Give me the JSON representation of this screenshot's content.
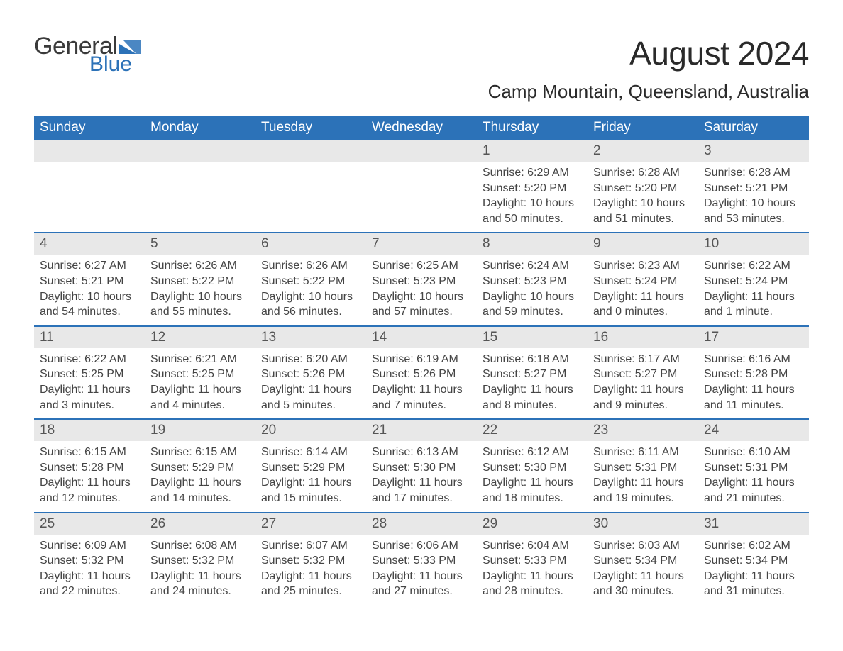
{
  "logo": {
    "text1": "General",
    "text2": "Blue"
  },
  "title": "August 2024",
  "location": "Camp Mountain, Queensland, Australia",
  "colors": {
    "header_bg": "#2c72b8",
    "header_text": "#ffffff",
    "daynum_bg": "#e8e8e8",
    "body_text": "#444444",
    "border": "#2c72b8"
  },
  "day_names": [
    "Sunday",
    "Monday",
    "Tuesday",
    "Wednesday",
    "Thursday",
    "Friday",
    "Saturday"
  ],
  "weeks": [
    [
      null,
      null,
      null,
      null,
      {
        "n": "1",
        "sr": "Sunrise: 6:29 AM",
        "ss": "Sunset: 5:20 PM",
        "dl": "Daylight: 10 hours and 50 minutes."
      },
      {
        "n": "2",
        "sr": "Sunrise: 6:28 AM",
        "ss": "Sunset: 5:20 PM",
        "dl": "Daylight: 10 hours and 51 minutes."
      },
      {
        "n": "3",
        "sr": "Sunrise: 6:28 AM",
        "ss": "Sunset: 5:21 PM",
        "dl": "Daylight: 10 hours and 53 minutes."
      }
    ],
    [
      {
        "n": "4",
        "sr": "Sunrise: 6:27 AM",
        "ss": "Sunset: 5:21 PM",
        "dl": "Daylight: 10 hours and 54 minutes."
      },
      {
        "n": "5",
        "sr": "Sunrise: 6:26 AM",
        "ss": "Sunset: 5:22 PM",
        "dl": "Daylight: 10 hours and 55 minutes."
      },
      {
        "n": "6",
        "sr": "Sunrise: 6:26 AM",
        "ss": "Sunset: 5:22 PM",
        "dl": "Daylight: 10 hours and 56 minutes."
      },
      {
        "n": "7",
        "sr": "Sunrise: 6:25 AM",
        "ss": "Sunset: 5:23 PM",
        "dl": "Daylight: 10 hours and 57 minutes."
      },
      {
        "n": "8",
        "sr": "Sunrise: 6:24 AM",
        "ss": "Sunset: 5:23 PM",
        "dl": "Daylight: 10 hours and 59 minutes."
      },
      {
        "n": "9",
        "sr": "Sunrise: 6:23 AM",
        "ss": "Sunset: 5:24 PM",
        "dl": "Daylight: 11 hours and 0 minutes."
      },
      {
        "n": "10",
        "sr": "Sunrise: 6:22 AM",
        "ss": "Sunset: 5:24 PM",
        "dl": "Daylight: 11 hours and 1 minute."
      }
    ],
    [
      {
        "n": "11",
        "sr": "Sunrise: 6:22 AM",
        "ss": "Sunset: 5:25 PM",
        "dl": "Daylight: 11 hours and 3 minutes."
      },
      {
        "n": "12",
        "sr": "Sunrise: 6:21 AM",
        "ss": "Sunset: 5:25 PM",
        "dl": "Daylight: 11 hours and 4 minutes."
      },
      {
        "n": "13",
        "sr": "Sunrise: 6:20 AM",
        "ss": "Sunset: 5:26 PM",
        "dl": "Daylight: 11 hours and 5 minutes."
      },
      {
        "n": "14",
        "sr": "Sunrise: 6:19 AM",
        "ss": "Sunset: 5:26 PM",
        "dl": "Daylight: 11 hours and 7 minutes."
      },
      {
        "n": "15",
        "sr": "Sunrise: 6:18 AM",
        "ss": "Sunset: 5:27 PM",
        "dl": "Daylight: 11 hours and 8 minutes."
      },
      {
        "n": "16",
        "sr": "Sunrise: 6:17 AM",
        "ss": "Sunset: 5:27 PM",
        "dl": "Daylight: 11 hours and 9 minutes."
      },
      {
        "n": "17",
        "sr": "Sunrise: 6:16 AM",
        "ss": "Sunset: 5:28 PM",
        "dl": "Daylight: 11 hours and 11 minutes."
      }
    ],
    [
      {
        "n": "18",
        "sr": "Sunrise: 6:15 AM",
        "ss": "Sunset: 5:28 PM",
        "dl": "Daylight: 11 hours and 12 minutes."
      },
      {
        "n": "19",
        "sr": "Sunrise: 6:15 AM",
        "ss": "Sunset: 5:29 PM",
        "dl": "Daylight: 11 hours and 14 minutes."
      },
      {
        "n": "20",
        "sr": "Sunrise: 6:14 AM",
        "ss": "Sunset: 5:29 PM",
        "dl": "Daylight: 11 hours and 15 minutes."
      },
      {
        "n": "21",
        "sr": "Sunrise: 6:13 AM",
        "ss": "Sunset: 5:30 PM",
        "dl": "Daylight: 11 hours and 17 minutes."
      },
      {
        "n": "22",
        "sr": "Sunrise: 6:12 AM",
        "ss": "Sunset: 5:30 PM",
        "dl": "Daylight: 11 hours and 18 minutes."
      },
      {
        "n": "23",
        "sr": "Sunrise: 6:11 AM",
        "ss": "Sunset: 5:31 PM",
        "dl": "Daylight: 11 hours and 19 minutes."
      },
      {
        "n": "24",
        "sr": "Sunrise: 6:10 AM",
        "ss": "Sunset: 5:31 PM",
        "dl": "Daylight: 11 hours and 21 minutes."
      }
    ],
    [
      {
        "n": "25",
        "sr": "Sunrise: 6:09 AM",
        "ss": "Sunset: 5:32 PM",
        "dl": "Daylight: 11 hours and 22 minutes."
      },
      {
        "n": "26",
        "sr": "Sunrise: 6:08 AM",
        "ss": "Sunset: 5:32 PM",
        "dl": "Daylight: 11 hours and 24 minutes."
      },
      {
        "n": "27",
        "sr": "Sunrise: 6:07 AM",
        "ss": "Sunset: 5:32 PM",
        "dl": "Daylight: 11 hours and 25 minutes."
      },
      {
        "n": "28",
        "sr": "Sunrise: 6:06 AM",
        "ss": "Sunset: 5:33 PM",
        "dl": "Daylight: 11 hours and 27 minutes."
      },
      {
        "n": "29",
        "sr": "Sunrise: 6:04 AM",
        "ss": "Sunset: 5:33 PM",
        "dl": "Daylight: 11 hours and 28 minutes."
      },
      {
        "n": "30",
        "sr": "Sunrise: 6:03 AM",
        "ss": "Sunset: 5:34 PM",
        "dl": "Daylight: 11 hours and 30 minutes."
      },
      {
        "n": "31",
        "sr": "Sunrise: 6:02 AM",
        "ss": "Sunset: 5:34 PM",
        "dl": "Daylight: 11 hours and 31 minutes."
      }
    ]
  ]
}
